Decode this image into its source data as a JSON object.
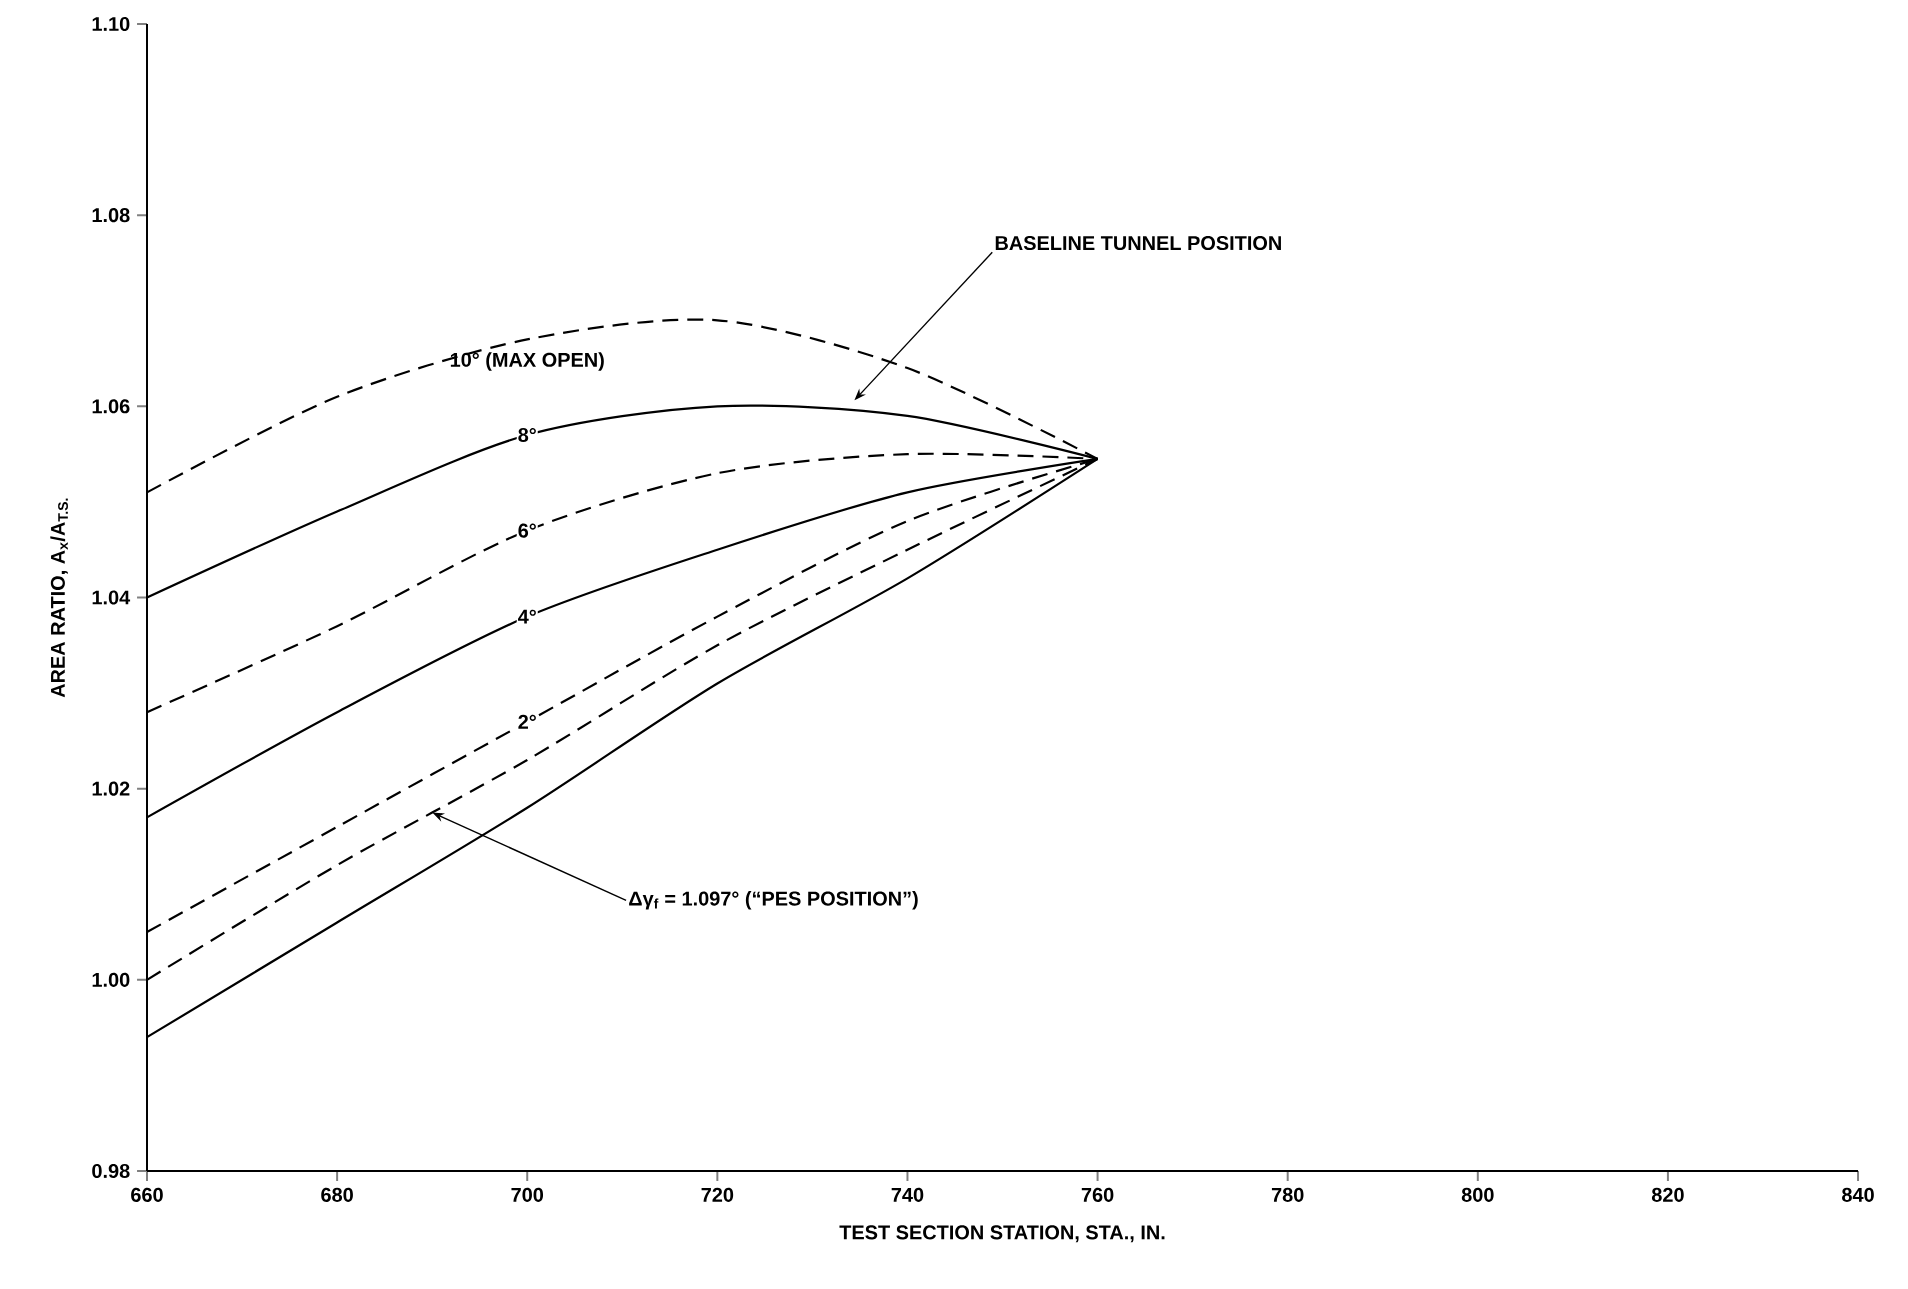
{
  "chart_data": {
    "type": "line",
    "xlabel": "TEST SECTION STATION, STA., IN.",
    "ylabel": "AREA RATIO, A$_{x}$/A$_{T.S.}$",
    "x": [
      660,
      680,
      700,
      720,
      740,
      760
    ],
    "series": [
      {
        "name": "10° (MAX OPEN)",
        "color": "#000000",
        "line_style": "dashed",
        "values": [
          1.051,
          1.061,
          1.067,
          1.069,
          1.064,
          1.0545
        ]
      },
      {
        "name": "8°",
        "color": "#000000",
        "line_style": "solid",
        "values": [
          1.04,
          1.049,
          1.057,
          1.06,
          1.059,
          1.0545
        ]
      },
      {
        "name": "6°",
        "color": "#000000",
        "line_style": "dashed",
        "values": [
          1.028,
          1.037,
          1.047,
          1.053,
          1.055,
          1.0545
        ]
      },
      {
        "name": "4°",
        "color": "#000000",
        "line_style": "solid",
        "values": [
          1.017,
          1.028,
          1.038,
          1.045,
          1.051,
          1.0545
        ]
      },
      {
        "name": "2°",
        "color": "#000000",
        "line_style": "dashed",
        "values": [
          1.005,
          1.016,
          1.027,
          1.038,
          1.048,
          1.0545
        ]
      },
      {
        "color": "#000000",
        "line_style": "dashed",
        "values": [
          1.0,
          1.012,
          1.023,
          1.035,
          1.045,
          1.0545
        ]
      },
      {
        "color": "#000000",
        "line_style": "solid",
        "values": [
          0.994,
          1.006,
          1.018,
          1.031,
          1.042,
          1.0545
        ]
      }
    ],
    "annotations": [
      "BASELINE TUNNEL POSITION",
      {
        "text": "Δγ$_{f}$ = 1.097° (“PES POSITION”)",
        "x": 690,
        "y": 1.0175
      }
    ],
    "xlim": [
      660,
      840
    ],
    "ylim": [
      0.98,
      1.1
    ],
    "xticks": [
      660,
      680,
      700,
      720,
      740,
      760,
      780,
      800,
      820,
      840
    ],
    "yticks": [
      {
        "value": 0.98,
        "label": "0.98"
      },
      {
        "value": 1.0,
        "label": "1.00"
      },
      {
        "value": 1.02,
        "label": "1.02"
      },
      {
        "value": 1.04,
        "label": "1.04"
      },
      {
        "value": 1.06,
        "label": "1.06"
      },
      {
        "value": 1.08,
        "label": "1.08"
      },
      {
        "value": 1.1,
        "label": "1.10"
      }
    ],
    "grid": false,
    "legend": false
  }
}
